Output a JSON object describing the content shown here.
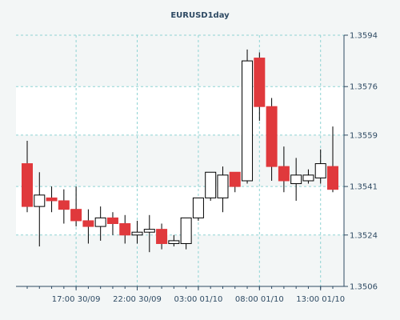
{
  "chart_data": {
    "type": "candlestick",
    "title": "EURUSD1day",
    "ylim": [
      1.3506,
      1.3594
    ],
    "y_ticks": [
      "1.3594",
      "1.3576",
      "1.3559",
      "1.3541",
      "1.3524",
      "1.3506"
    ],
    "x_ticks": [
      "17:00 30/09",
      "22:00 30/09",
      "03:00 01/10",
      "08:00 01/10",
      "13:00 01/10"
    ],
    "grid": true,
    "colors": {
      "up": "#ffffff",
      "down": "#e0393c",
      "wick": "#000000",
      "grid": "#8fd3d3",
      "band": "#ffffff",
      "background": "#f3f6f6",
      "text": "#2e4a63"
    },
    "candles": [
      {
        "open": 1.3549,
        "high": 1.3557,
        "low": 1.3532,
        "close": 1.3534
      },
      {
        "open": 1.3534,
        "high": 1.3546,
        "low": 1.352,
        "close": 1.3538
      },
      {
        "open": 1.3537,
        "high": 1.3541,
        "low": 1.3532,
        "close": 1.3536
      },
      {
        "open": 1.3536,
        "high": 1.354,
        "low": 1.3528,
        "close": 1.3533
      },
      {
        "open": 1.3533,
        "high": 1.3541,
        "low": 1.3527,
        "close": 1.3529
      },
      {
        "open": 1.3529,
        "high": 1.3533,
        "low": 1.3521,
        "close": 1.3527
      },
      {
        "open": 1.3527,
        "high": 1.3534,
        "low": 1.3522,
        "close": 1.353
      },
      {
        "open": 1.353,
        "high": 1.3532,
        "low": 1.3524,
        "close": 1.3528
      },
      {
        "open": 1.3528,
        "high": 1.3531,
        "low": 1.3521,
        "close": 1.3524
      },
      {
        "open": 1.3524,
        "high": 1.3529,
        "low": 1.3521,
        "close": 1.3525
      },
      {
        "open": 1.3525,
        "high": 1.3531,
        "low": 1.3518,
        "close": 1.3526
      },
      {
        "open": 1.3526,
        "high": 1.3528,
        "low": 1.3519,
        "close": 1.3521
      },
      {
        "open": 1.3521,
        "high": 1.3524,
        "low": 1.352,
        "close": 1.3522
      },
      {
        "open": 1.3521,
        "high": 1.353,
        "low": 1.3519,
        "close": 1.353
      },
      {
        "open": 1.353,
        "high": 1.3537,
        "low": 1.3529,
        "close": 1.3537
      },
      {
        "open": 1.3537,
        "high": 1.3546,
        "low": 1.3536,
        "close": 1.3546
      },
      {
        "open": 1.3537,
        "high": 1.3548,
        "low": 1.3532,
        "close": 1.3545
      },
      {
        "open": 1.3546,
        "high": 1.3546,
        "low": 1.3539,
        "close": 1.3541
      },
      {
        "open": 1.3543,
        "high": 1.3589,
        "low": 1.3542,
        "close": 1.3585
      },
      {
        "open": 1.3586,
        "high": 1.3588,
        "low": 1.3564,
        "close": 1.3569
      },
      {
        "open": 1.3569,
        "high": 1.3572,
        "low": 1.3543,
        "close": 1.3548
      },
      {
        "open": 1.3548,
        "high": 1.3555,
        "low": 1.3539,
        "close": 1.3543
      },
      {
        "open": 1.3542,
        "high": 1.3551,
        "low": 1.3536,
        "close": 1.3545
      },
      {
        "open": 1.3543,
        "high": 1.3547,
        "low": 1.3542,
        "close": 1.3545
      },
      {
        "open": 1.3544,
        "high": 1.3554,
        "low": 1.3542,
        "close": 1.3549
      },
      {
        "open": 1.3548,
        "high": 1.3562,
        "low": 1.3539,
        "close": 1.354
      }
    ]
  }
}
